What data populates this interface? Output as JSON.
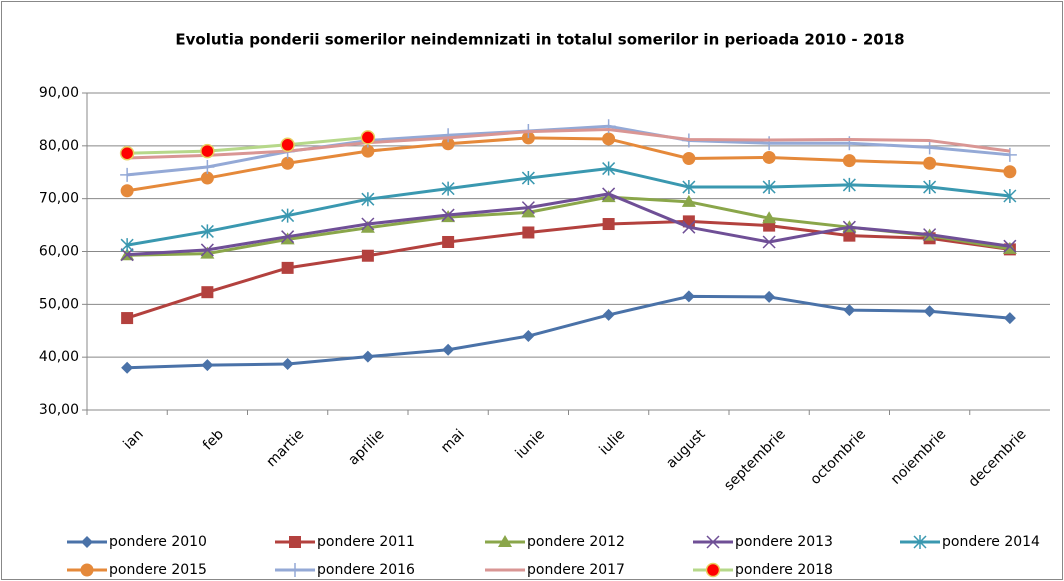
{
  "chart_data": {
    "type": "line",
    "title": "Evolutia ponderii somerilor neindemnizati in totalul somerilor in perioada 2010 -  2018",
    "categories": [
      "ian",
      "feb",
      "martie",
      "aprilie",
      "mai",
      "iunie",
      "iulie",
      "august",
      "septembrie",
      "octombrie",
      "noiembrie",
      "decembrie"
    ],
    "ylim": [
      30,
      90
    ],
    "yticks": [
      {
        "value": 30,
        "label": "30,00"
      },
      {
        "value": 40,
        "label": "40,00"
      },
      {
        "value": 50,
        "label": "50,00"
      },
      {
        "value": 60,
        "label": "60,00"
      },
      {
        "value": 70,
        "label": "70,00"
      },
      {
        "value": 80,
        "label": "80,00"
      },
      {
        "value": 90,
        "label": "90,00"
      }
    ],
    "grid": true,
    "legend": "bottom",
    "series": [
      {
        "name": "pondere 2010",
        "color": "#4a72a8",
        "marker": "diamond",
        "values": [
          38.0,
          38.5,
          38.7,
          40.1,
          41.4,
          44.0,
          48.0,
          51.5,
          51.4,
          48.9,
          48.7,
          47.4
        ]
      },
      {
        "name": "pondere 2011",
        "color": "#b3413e",
        "marker": "square",
        "values": [
          47.4,
          52.3,
          56.9,
          59.2,
          61.8,
          63.6,
          65.2,
          65.7,
          64.9,
          63.0,
          62.5,
          60.4
        ]
      },
      {
        "name": "pondere 2012",
        "color": "#8aa64a",
        "marker": "triangle",
        "values": [
          59.3,
          59.6,
          62.3,
          64.5,
          66.5,
          67.4,
          70.3,
          69.4,
          66.3,
          64.6,
          63.0,
          60.5
        ]
      },
      {
        "name": "pondere 2013",
        "color": "#6f4f96",
        "marker": "x",
        "values": [
          59.4,
          60.3,
          62.8,
          65.2,
          66.9,
          68.3,
          70.9,
          64.6,
          61.8,
          64.6,
          63.2,
          61.0
        ]
      },
      {
        "name": "pondere 2014",
        "color": "#3a98b0",
        "marker": "asterisk",
        "values": [
          61.2,
          63.8,
          66.8,
          69.9,
          71.9,
          73.9,
          75.7,
          72.2,
          72.2,
          72.6,
          72.2,
          70.5
        ]
      },
      {
        "name": "pondere 2015",
        "color": "#e5893a",
        "marker": "circle",
        "values": [
          71.5,
          73.9,
          76.7,
          79.0,
          80.4,
          81.5,
          81.3,
          77.6,
          77.8,
          77.2,
          76.7,
          75.1
        ]
      },
      {
        "name": "pondere 2016",
        "color": "#94a9d6",
        "marker": "plus",
        "values": [
          74.5,
          76.0,
          78.9,
          81.0,
          82.0,
          82.8,
          83.7,
          81.0,
          80.5,
          80.5,
          79.7,
          78.3
        ]
      },
      {
        "name": "pondere 2017",
        "color": "#d99694",
        "marker": "none",
        "values": [
          77.7,
          78.2,
          79.0,
          80.6,
          81.5,
          82.7,
          83.1,
          81.2,
          81.1,
          81.2,
          81.0,
          79.0
        ]
      },
      {
        "name": "pondere 2018",
        "color": "#b6d88a",
        "marker": "circle",
        "marker_color": "#ff0000",
        "values": [
          78.6,
          79.0,
          80.2,
          81.6,
          null,
          null,
          null,
          null,
          null,
          null,
          null,
          null
        ]
      }
    ]
  }
}
